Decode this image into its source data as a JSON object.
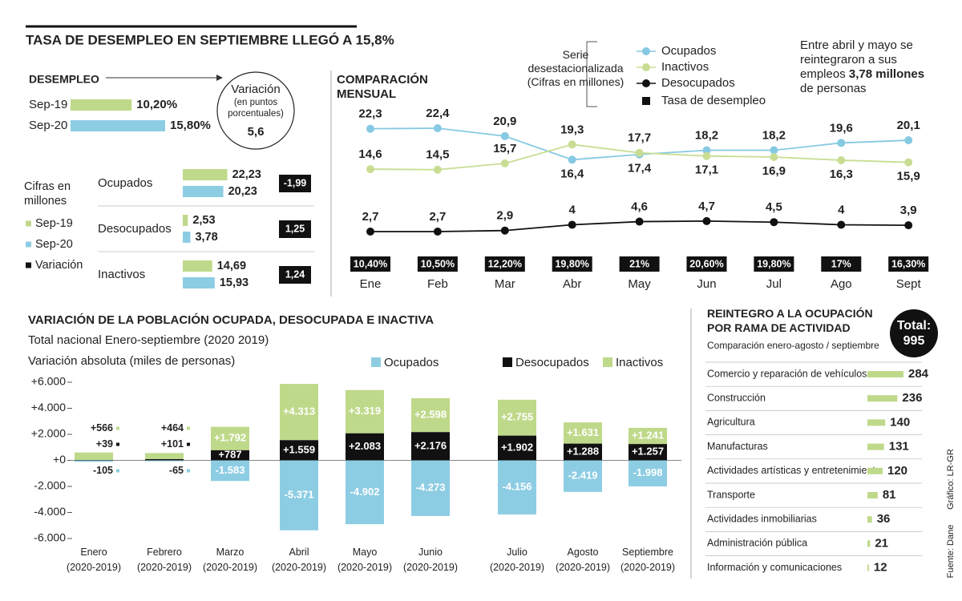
{
  "title": "TASA DE DESEMPLEO EN SEPTIEMBRE LLEGÓ A 15,8%",
  "credit": "Gráfico: LR-GR",
  "source": "Fuente: Dane",
  "chart_data": [
    {
      "type": "bar",
      "orientation": "horizontal",
      "title": "DESEMPLEO",
      "categories": [
        "Sep-19",
        "Sep-20"
      ],
      "values": [
        10.2,
        15.8
      ],
      "value_labels": [
        "10,20%",
        "15,80%"
      ],
      "colors": [
        "#bfd98a",
        "#8dcde3"
      ],
      "annotation": {
        "title": "Variación",
        "subtitle": "(en puntos\nporcentuales)",
        "value": "5,6"
      }
    },
    {
      "type": "grouped-bar",
      "orientation": "horizontal",
      "legend_title": "Cifras en\nmillones",
      "categories": [
        "Ocupados",
        "Desocupados",
        "Inactivos"
      ],
      "series": [
        {
          "name": "Sep-19",
          "color": "#bfd98a",
          "values": [
            22.23,
            2.53,
            14.69
          ],
          "value_labels": [
            "22,23",
            "2,53",
            "14,69"
          ]
        },
        {
          "name": "Sep-20",
          "color": "#8dcde3",
          "values": [
            20.23,
            3.78,
            15.93
          ],
          "value_labels": [
            "20,23",
            "3,78",
            "15,93"
          ]
        },
        {
          "name": "Variación",
          "color": "#111111",
          "values": [
            -1.99,
            1.25,
            1.24
          ],
          "value_labels": [
            "-1,99",
            "1,25",
            "1,24"
          ]
        }
      ]
    },
    {
      "type": "line",
      "title": "COMPARACIÓN\nMENSUAL",
      "legend_title": "Serie\ndesestacionalizada\n(Cifras en millones)",
      "categories": [
        "Ene",
        "Feb",
        "Mar",
        "Abr",
        "May",
        "Jun",
        "Jul",
        "Ago",
        "Sept"
      ],
      "series": [
        {
          "name": "Ocupados",
          "color": "#86c9e2",
          "values": [
            22.3,
            22.4,
            20.9,
            16.4,
            17.4,
            18.2,
            18.2,
            19.6,
            20.1
          ],
          "value_labels": [
            "22,3",
            "22,4",
            "20,9",
            "16,4",
            "17,4",
            "18,2",
            "18,2",
            "19,6",
            "20,1"
          ]
        },
        {
          "name": "Inactivos",
          "color": "#c8dd93",
          "values": [
            14.6,
            14.5,
            15.7,
            19.3,
            17.7,
            17.1,
            16.9,
            16.3,
            15.9
          ],
          "value_labels": [
            "14,6",
            "14,5",
            "15,7",
            "19,3",
            "17,7",
            "17,1",
            "16,9",
            "16,3",
            "15,9"
          ]
        },
        {
          "name": "Desocupados",
          "color": "#111111",
          "values": [
            2.7,
            2.7,
            2.9,
            4,
            4.6,
            4.7,
            4.5,
            4,
            3.9
          ],
          "value_labels": [
            "2,7",
            "2,7",
            "2,9",
            "4",
            "4,6",
            "4,7",
            "4,5",
            "4",
            "3,9"
          ]
        }
      ],
      "rate": {
        "name": "Tasa de desempleo",
        "color": "#111111",
        "values": [
          10.4,
          10.5,
          12.2,
          19.8,
          21,
          20.6,
          19.8,
          17,
          16.3
        ],
        "value_labels": [
          "10,40%",
          "10,50%",
          "12,20%",
          "19,80%",
          "21%",
          "20,60%",
          "19,80%",
          "17%",
          "16,30%"
        ]
      },
      "annotation": {
        "before": "Entre abril y mayo se reintegraron a sus empleos",
        "highlight": "3,78 millones",
        "after": "de personas"
      }
    },
    {
      "type": "stacked-bar",
      "title": "VARIACIÓN DE LA POBLACIÓN OCUPADA, DESOCUPADA E INACTIVA",
      "subtitle": "Total nacional Enero-septiembre (2020 2019)",
      "y_label": "Variación absoluta (miles de personas)",
      "categories": [
        "Enero\n(2020-2019)",
        "Febrero\n(2020-2019)",
        "Marzo\n(2020-2019)",
        "Abril\n(2020-2019)",
        "Mayo\n(2020-2019)",
        "Junio\n(2020-2019)",
        "Julio\n(2020-2019)",
        "Agosto\n(2020-2019)",
        "Septiembre\n(2020-2019)"
      ],
      "series": [
        {
          "name": "Ocupados",
          "color": "#8dcde3",
          "values": [
            -105,
            -65,
            -1583,
            -5371,
            -4902,
            -4273,
            -4156,
            -2419,
            -1998
          ],
          "value_labels": [
            "-105",
            "-65",
            "-1.583",
            "-5.371",
            "-4.902",
            "-4.273",
            "-4.156",
            "-2.419",
            "-1.998"
          ]
        },
        {
          "name": "Desocupados",
          "color": "#111111",
          "values": [
            39,
            101,
            787,
            1559,
            2083,
            2176,
            1902,
            1288,
            1257
          ],
          "value_labels": [
            "+39",
            "+101",
            "+787",
            "+1.559",
            "+2.083",
            "+2.176",
            "+1.902",
            "+1.288",
            "+1.257"
          ]
        },
        {
          "name": "Inactivos",
          "color": "#bfd98a",
          "values": [
            566,
            464,
            1792,
            4313,
            3319,
            2598,
            2755,
            1631,
            1241
          ],
          "value_labels": [
            "+566",
            "+464",
            "+1.792",
            "+4.313",
            "+3.319",
            "+2.598",
            "+2.755",
            "+1.631",
            "+1.241"
          ]
        }
      ],
      "ylim": [
        -6000,
        6000
      ],
      "yticks": [
        {
          "value": 6000,
          "label": "+6.000"
        },
        {
          "value": 4000,
          "label": "+4.000"
        },
        {
          "value": 2000,
          "label": "+2.000"
        },
        {
          "value": 0,
          "label": "+0"
        },
        {
          "value": -2000,
          "label": "-2.000"
        },
        {
          "value": -4000,
          "label": "-4.000"
        },
        {
          "value": -6000,
          "label": "-6.000"
        }
      ]
    },
    {
      "type": "bar",
      "orientation": "horizontal",
      "title": "REINTEGRO A LA OCUPACIÓN\nPOR RAMA DE ACTIVIDAD",
      "subtitle": "Comparación enero-agosto / septiembre",
      "total_label": "Total:",
      "total": 995,
      "categories": [
        "Comercio y reparación de vehículos",
        "Construcción",
        "Agricultura",
        "Manufacturas",
        "Actividades artísticas y entretenimiento",
        "Transporte",
        "Actividades inmobiliarias",
        "Administración pública",
        "Información y comunicaciones"
      ],
      "values": [
        284,
        236,
        140,
        131,
        120,
        81,
        36,
        21,
        12
      ],
      "color": "#bfd98a"
    }
  ]
}
